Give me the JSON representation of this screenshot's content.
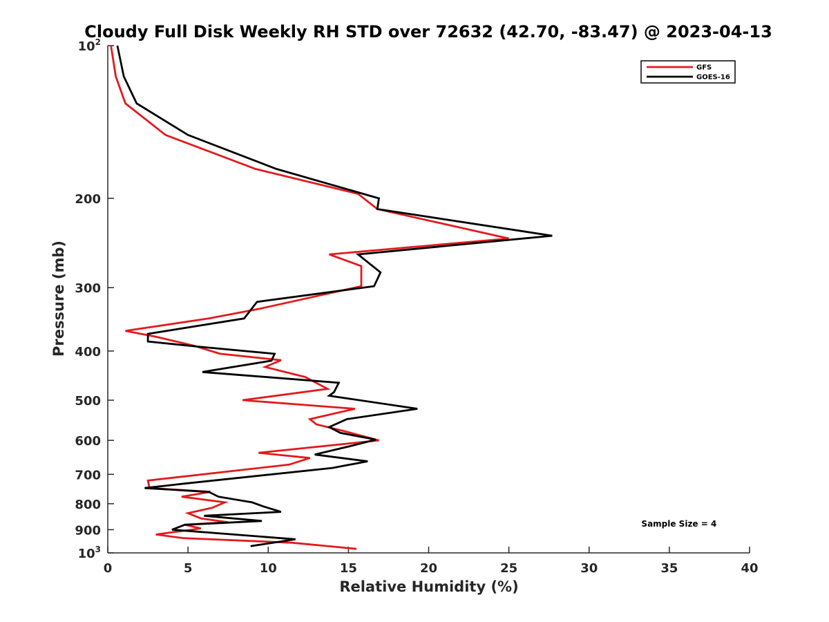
{
  "chart_data": {
    "type": "line",
    "title": "Cloudy Full Disk Weekly RH STD over 72632 (42.70, -83.47) @ 2023-04-13",
    "xlabel": "Relative Humidity (%)",
    "ylabel": "Pressure (mb)",
    "xlim": [
      0,
      40
    ],
    "ylim": [
      1000,
      100
    ],
    "yscale": "log",
    "y_reversed": true,
    "x_ticks": [
      {
        "value": 0,
        "label": "0"
      },
      {
        "value": 5,
        "label": "5"
      },
      {
        "value": 10,
        "label": "10"
      },
      {
        "value": 15,
        "label": "15"
      },
      {
        "value": 20,
        "label": "20"
      },
      {
        "value": 25,
        "label": "25"
      },
      {
        "value": 30,
        "label": "30"
      },
      {
        "value": 35,
        "label": "35"
      },
      {
        "value": 40,
        "label": "40"
      }
    ],
    "y_ticks": [
      {
        "value": 100,
        "label": "10",
        "sup": "2"
      },
      {
        "value": 200,
        "label": "200"
      },
      {
        "value": 300,
        "label": "300"
      },
      {
        "value": 400,
        "label": "400"
      },
      {
        "value": 500,
        "label": "500"
      },
      {
        "value": 600,
        "label": "600"
      },
      {
        "value": 700,
        "label": "700"
      },
      {
        "value": 800,
        "label": "800"
      },
      {
        "value": 900,
        "label": "900"
      },
      {
        "value": 1000,
        "label": "10",
        "sup": "3"
      }
    ],
    "grid": false,
    "legend_position": "top-right",
    "series": [
      {
        "name": "GFS",
        "color": "#e31a1c",
        "points": [
          [
            0.2,
            100
          ],
          [
            0.5,
            115
          ],
          [
            1.1,
            130
          ],
          [
            3.6,
            150
          ],
          [
            9.2,
            175
          ],
          [
            15.6,
            196
          ],
          [
            16.8,
            210
          ],
          [
            25.0,
            240
          ],
          [
            13.8,
            258
          ],
          [
            15.8,
            272
          ],
          [
            15.8,
            298
          ],
          [
            9.5,
            330
          ],
          [
            6.3,
            345
          ],
          [
            1.1,
            365
          ],
          [
            3.0,
            375
          ],
          [
            5.3,
            390
          ],
          [
            7.0,
            405
          ],
          [
            10.8,
            417
          ],
          [
            9.8,
            430
          ],
          [
            12.3,
            450
          ],
          [
            13.7,
            475
          ],
          [
            8.4,
            500
          ],
          [
            15.4,
            520
          ],
          [
            12.6,
            545
          ],
          [
            13.0,
            558
          ],
          [
            14.7,
            575
          ],
          [
            16.9,
            600
          ],
          [
            9.4,
            635
          ],
          [
            12.6,
            650
          ],
          [
            11.3,
            670
          ],
          [
            2.5,
            720
          ],
          [
            2.6,
            745
          ],
          [
            6.4,
            758
          ],
          [
            4.6,
            775
          ],
          [
            7.3,
            795
          ],
          [
            6.5,
            815
          ],
          [
            5.0,
            835
          ],
          [
            5.8,
            855
          ],
          [
            7.5,
            870
          ],
          [
            4.8,
            880
          ],
          [
            5.8,
            895
          ],
          [
            3.0,
            920
          ],
          [
            4.7,
            935
          ],
          [
            11.5,
            955
          ],
          [
            15.5,
            982
          ]
        ]
      },
      {
        "name": "GOES-16",
        "color": "#000000",
        "points": [
          [
            0.6,
            100
          ],
          [
            1.0,
            115
          ],
          [
            1.8,
            130
          ],
          [
            5.0,
            150
          ],
          [
            10.5,
            175
          ],
          [
            16.9,
            200
          ],
          [
            16.8,
            210
          ],
          [
            27.7,
            237
          ],
          [
            15.6,
            258
          ],
          [
            17.0,
            280
          ],
          [
            16.6,
            298
          ],
          [
            9.3,
            320
          ],
          [
            8.5,
            345
          ],
          [
            2.5,
            370
          ],
          [
            2.5,
            383
          ],
          [
            5.6,
            392
          ],
          [
            10.4,
            405
          ],
          [
            10.2,
            418
          ],
          [
            5.9,
            440
          ],
          [
            14.4,
            462
          ],
          [
            14.1,
            482
          ],
          [
            13.8,
            490
          ],
          [
            19.3,
            520
          ],
          [
            14.9,
            545
          ],
          [
            13.8,
            565
          ],
          [
            14.5,
            580
          ],
          [
            16.7,
            598
          ],
          [
            15.2,
            615
          ],
          [
            12.9,
            640
          ],
          [
            16.2,
            660
          ],
          [
            14.0,
            680
          ],
          [
            4.8,
            730
          ],
          [
            2.3,
            745
          ],
          [
            6.3,
            758
          ],
          [
            6.9,
            775
          ],
          [
            9.0,
            795
          ],
          [
            9.7,
            810
          ],
          [
            10.8,
            830
          ],
          [
            6.0,
            845
          ],
          [
            9.6,
            865
          ],
          [
            4.8,
            880
          ],
          [
            4.0,
            900
          ],
          [
            11.7,
            940
          ],
          [
            8.9,
            970
          ]
        ]
      }
    ],
    "annotations": [
      {
        "text": "Sample Size = 4",
        "x": 35,
        "y": 893
      }
    ]
  }
}
